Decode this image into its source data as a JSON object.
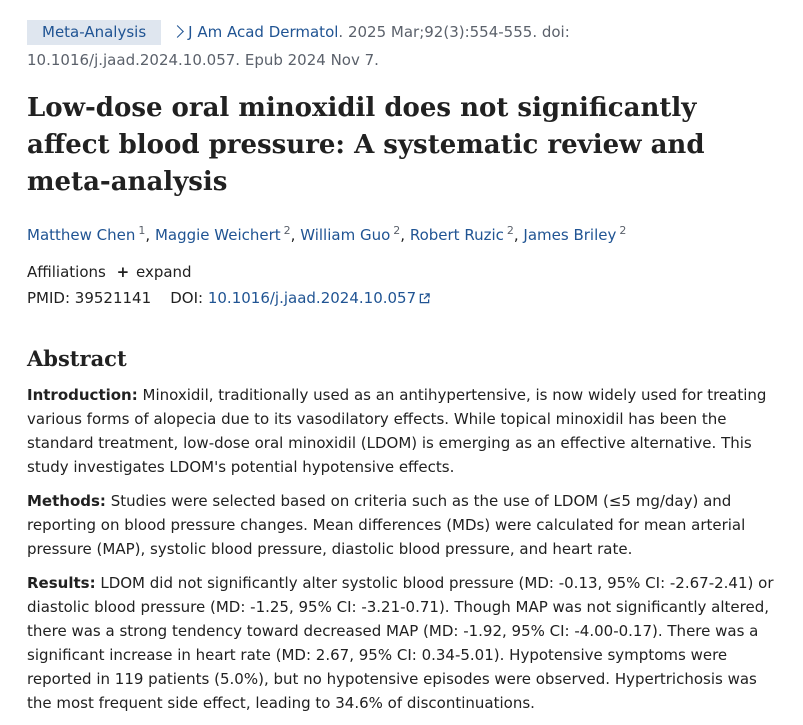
{
  "citation": {
    "badge": "Meta-Analysis",
    "journal": "J Am Acad Dermatol",
    "details": ". 2025 Mar;92(3):554-555. doi: 10.1016/j.jaad.2024.10.057.",
    "epub": "Epub 2024 Nov 7."
  },
  "title": "Low-dose oral minoxidil does not significantly affect blood pressure: A systematic review and meta-analysis",
  "authors": [
    {
      "name": "Matthew Chen",
      "aff": "1"
    },
    {
      "name": "Maggie Weichert",
      "aff": "2"
    },
    {
      "name": "William Guo",
      "aff": "2"
    },
    {
      "name": "Robert Ruzic",
      "aff": "2"
    },
    {
      "name": "James Briley",
      "aff": "2"
    }
  ],
  "affiliations": {
    "label": "Affiliations",
    "toggle": "expand"
  },
  "identifiers": {
    "pmid_label": "PMID: ",
    "pmid": "39521141",
    "doi_label": "DOI: ",
    "doi": "10.1016/j.jaad.2024.10.057"
  },
  "abstract": {
    "heading": "Abstract",
    "sections": [
      {
        "label": "Introduction:",
        "text": " Minoxidil, traditionally used as an antihypertensive, is now widely used for treating various forms of alopecia due to its vasodilatory effects. While topical minoxidil has been the standard treatment, low-dose oral minoxidil (LDOM) is emerging as an effective alternative. This study investigates LDOM's potential hypotensive effects."
      },
      {
        "label": "Methods:",
        "text": " Studies were selected based on criteria such as the use of LDOM (≤5 mg/day) and reporting on blood pressure changes. Mean differences (MDs) were calculated for mean arterial pressure (MAP), systolic blood pressure, diastolic blood pressure, and heart rate."
      },
      {
        "label": "Results:",
        "text": " LDOM did not significantly alter systolic blood pressure (MD: -0.13, 95% CI: -2.67-2.41) or diastolic blood pressure (MD: -1.25, 95% CI: -3.21-0.71). Though MAP was not significantly altered, there was a strong tendency toward decreased MAP (MD: -1.92, 95% CI: -4.00-0.17). There was a significant increase in heart rate (MD: 2.67, 95% CI: 0.34-5.01). Hypotensive symptoms were reported in 119 patients (5.0%), but no hypotensive episodes were observed. Hypertrichosis was the most frequent side effect, leading to 34.6% of discontinuations."
      }
    ]
  }
}
